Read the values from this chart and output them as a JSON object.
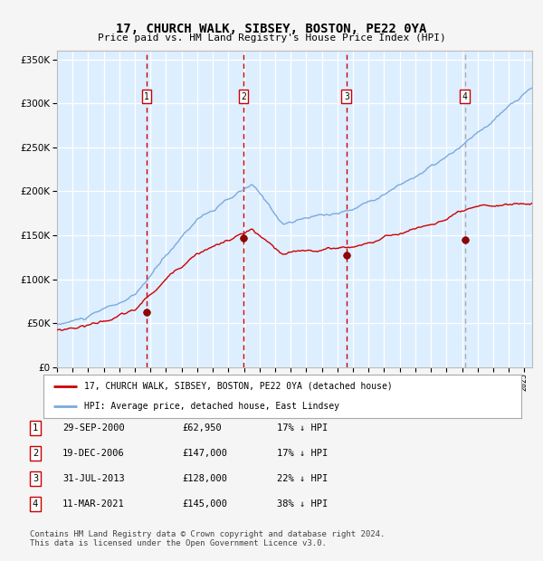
{
  "title": "17, CHURCH WALK, SIBSEY, BOSTON, PE22 0YA",
  "subtitle": "Price paid vs. HM Land Registry's House Price Index (HPI)",
  "background_color": "#ddeeff",
  "ylim": [
    0,
    360000
  ],
  "yticks": [
    0,
    50000,
    100000,
    150000,
    200000,
    250000,
    300000,
    350000
  ],
  "sales": [
    {
      "date_num": 2000.75,
      "price": 62950,
      "label": "1"
    },
    {
      "date_num": 2006.97,
      "price": 147000,
      "label": "2"
    },
    {
      "date_num": 2013.58,
      "price": 128000,
      "label": "3"
    },
    {
      "date_num": 2021.19,
      "price": 145000,
      "label": "4"
    }
  ],
  "vline_color": "#cc0000",
  "vline_4_color": "#aaaaaa",
  "hpi_line_color": "#7aaadd",
  "price_line_color": "#cc0000",
  "legend_label_1": "17, CHURCH WALK, SIBSEY, BOSTON, PE22 0YA (detached house)",
  "legend_label_2": "HPI: Average price, detached house, East Lindsey",
  "table_rows": [
    {
      "num": "1",
      "date": "29-SEP-2000",
      "price": "£62,950",
      "note": "17% ↓ HPI"
    },
    {
      "num": "2",
      "date": "19-DEC-2006",
      "price": "£147,000",
      "note": "17% ↓ HPI"
    },
    {
      "num": "3",
      "date": "31-JUL-2013",
      "price": "£128,000",
      "note": "22% ↓ HPI"
    },
    {
      "num": "4",
      "date": "11-MAR-2021",
      "price": "£145,000",
      "note": "38% ↓ HPI"
    }
  ],
  "footer": "Contains HM Land Registry data © Crown copyright and database right 2024.\nThis data is licensed under the Open Government Licence v3.0.",
  "xmin": 1995.0,
  "xmax": 2025.5
}
